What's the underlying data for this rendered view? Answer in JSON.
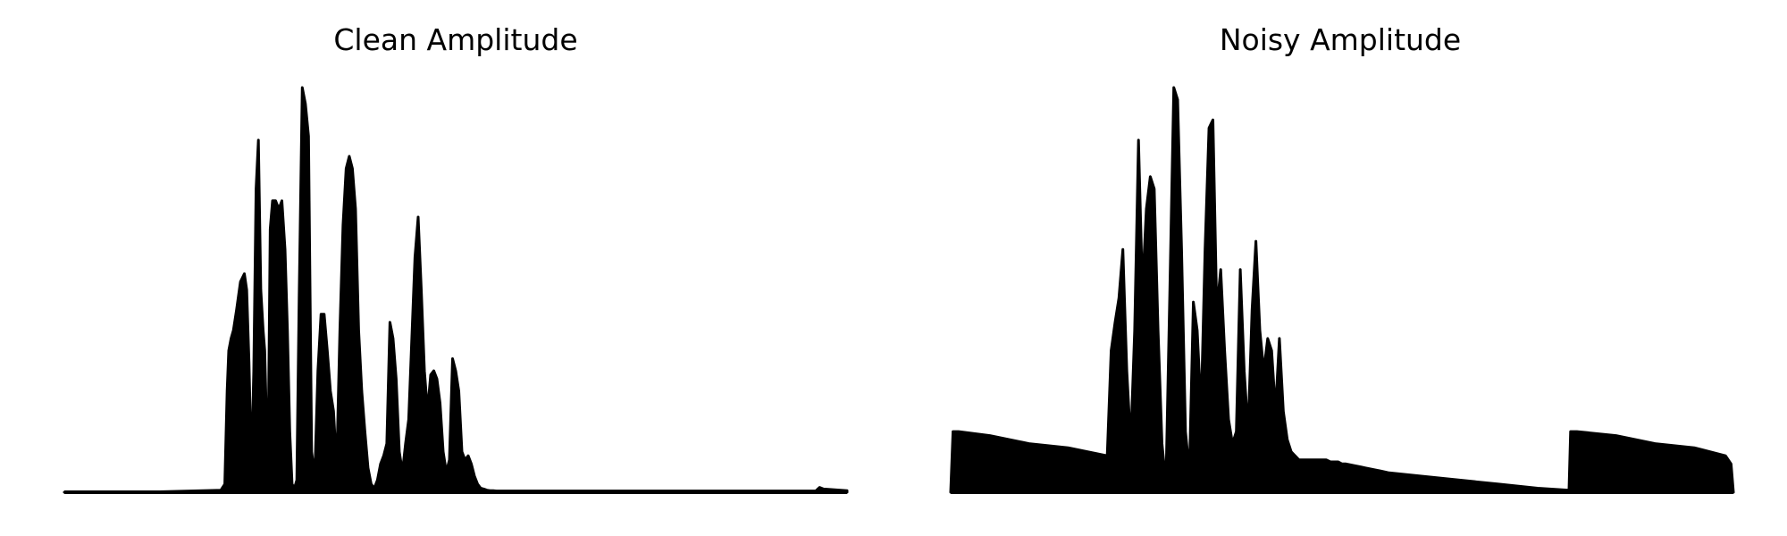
{
  "chart_data": [
    {
      "type": "area",
      "title": "Clean Amplitude",
      "xlabel": "",
      "ylabel": "",
      "axes_visible": false,
      "grid": false,
      "color": "#000000",
      "xlim": [
        0,
        1
      ],
      "ylim": [
        0,
        1
      ],
      "x": [
        0.0,
        0.1,
        0.2,
        0.205,
        0.206,
        0.208,
        0.21,
        0.213,
        0.216,
        0.22,
        0.225,
        0.23,
        0.233,
        0.236,
        0.239,
        0.242,
        0.245,
        0.248,
        0.251,
        0.254,
        0.256,
        0.258,
        0.26,
        0.263,
        0.266,
        0.27,
        0.274,
        0.278,
        0.282,
        0.285,
        0.288,
        0.291,
        0.294,
        0.297,
        0.3,
        0.304,
        0.308,
        0.312,
        0.316,
        0.32,
        0.324,
        0.328,
        0.332,
        0.336,
        0.34,
        0.344,
        0.348,
        0.352,
        0.356,
        0.36,
        0.364,
        0.368,
        0.372,
        0.376,
        0.38,
        0.384,
        0.388,
        0.392,
        0.396,
        0.4,
        0.404,
        0.408,
        0.412,
        0.416,
        0.42,
        0.424,
        0.428,
        0.432,
        0.436,
        0.44,
        0.444,
        0.448,
        0.452,
        0.456,
        0.46,
        0.464,
        0.468,
        0.472,
        0.476,
        0.48,
        0.484,
        0.488,
        0.492,
        0.496,
        0.5,
        0.504,
        0.508,
        0.512,
        0.516,
        0.52,
        0.524,
        0.528,
        0.532,
        0.536,
        0.54,
        0.544,
        0.548,
        0.552,
        0.556,
        0.56,
        0.564,
        0.568,
        0.572,
        0.576,
        0.58,
        0.584,
        0.588,
        0.592,
        0.596,
        0.6,
        0.604,
        0.608,
        0.612,
        0.616,
        0.62,
        0.624,
        0.628,
        0.632,
        0.636,
        0.64,
        0.645,
        0.65,
        0.655,
        0.66,
        0.7,
        0.8,
        0.9,
        0.96,
        0.965,
        0.97,
        1.0
      ],
      "values": [
        0.0,
        0.0,
        0.005,
        0.02,
        0.1,
        0.25,
        0.35,
        0.38,
        0.4,
        0.45,
        0.52,
        0.54,
        0.5,
        0.32,
        0.05,
        0.3,
        0.75,
        0.87,
        0.5,
        0.4,
        0.35,
        0.2,
        0.03,
        0.65,
        0.72,
        0.72,
        0.7,
        0.72,
        0.6,
        0.4,
        0.15,
        0.02,
        0.01,
        0.03,
        0.48,
        1.0,
        0.96,
        0.88,
        0.1,
        0.04,
        0.3,
        0.44,
        0.44,
        0.35,
        0.25,
        0.2,
        0.06,
        0.4,
        0.66,
        0.8,
        0.83,
        0.8,
        0.7,
        0.4,
        0.25,
        0.15,
        0.06,
        0.02,
        0.01,
        0.03,
        0.07,
        0.09,
        0.12,
        0.42,
        0.38,
        0.28,
        0.1,
        0.05,
        0.12,
        0.18,
        0.38,
        0.58,
        0.68,
        0.5,
        0.3,
        0.2,
        0.29,
        0.3,
        0.28,
        0.22,
        0.1,
        0.05,
        0.08,
        0.33,
        0.3,
        0.25,
        0.1,
        0.08,
        0.09,
        0.07,
        0.04,
        0.02,
        0.01,
        0.008,
        0.005,
        0.004,
        0.004,
        0.003,
        0.003,
        0.003,
        0.003,
        0.003,
        0.003,
        0.003,
        0.003,
        0.003,
        0.003,
        0.003,
        0.003,
        0.003,
        0.003,
        0.003,
        0.003,
        0.003,
        0.003,
        0.003,
        0.003,
        0.003,
        0.003,
        0.003,
        0.003,
        0.003,
        0.003,
        0.003,
        0.003,
        0.003,
        0.003,
        0.003,
        0.012,
        0.008,
        0.004
      ]
    },
    {
      "type": "area",
      "title": "Noisy Amplitude",
      "xlabel": "",
      "ylabel": "",
      "axes_visible": false,
      "grid": false,
      "color": "#000000",
      "xlim": [
        0,
        1
      ],
      "ylim": [
        0,
        1
      ],
      "x": [
        0.0,
        0.003,
        0.006,
        0.01,
        0.05,
        0.1,
        0.15,
        0.2,
        0.205,
        0.21,
        0.215,
        0.22,
        0.225,
        0.23,
        0.235,
        0.24,
        0.245,
        0.25,
        0.255,
        0.26,
        0.265,
        0.27,
        0.275,
        0.28,
        0.285,
        0.29,
        0.295,
        0.3,
        0.305,
        0.31,
        0.315,
        0.32,
        0.325,
        0.33,
        0.335,
        0.34,
        0.345,
        0.35,
        0.355,
        0.36,
        0.365,
        0.37,
        0.375,
        0.38,
        0.385,
        0.39,
        0.395,
        0.4,
        0.405,
        0.41,
        0.415,
        0.42,
        0.425,
        0.43,
        0.435,
        0.44,
        0.445,
        0.45,
        0.455,
        0.46,
        0.465,
        0.47,
        0.475,
        0.48,
        0.485,
        0.49,
        0.495,
        0.5,
        0.505,
        0.51,
        0.515,
        0.52,
        0.525,
        0.53,
        0.535,
        0.54,
        0.545,
        0.55,
        0.555,
        0.56,
        0.6,
        0.65,
        0.7,
        0.75,
        0.79,
        0.792,
        0.8,
        0.85,
        0.9,
        0.95,
        0.99,
        0.997,
        1.0
      ],
      "values": [
        0.0,
        0.15,
        0.15,
        0.15,
        0.14,
        0.12,
        0.11,
        0.09,
        0.35,
        0.42,
        0.48,
        0.6,
        0.3,
        0.12,
        0.4,
        0.87,
        0.5,
        0.7,
        0.78,
        0.75,
        0.4,
        0.12,
        0.02,
        0.5,
        1.0,
        0.97,
        0.6,
        0.15,
        0.05,
        0.47,
        0.4,
        0.2,
        0.6,
        0.9,
        0.92,
        0.45,
        0.55,
        0.35,
        0.18,
        0.12,
        0.15,
        0.55,
        0.3,
        0.15,
        0.45,
        0.62,
        0.4,
        0.3,
        0.38,
        0.35,
        0.2,
        0.38,
        0.2,
        0.13,
        0.1,
        0.09,
        0.08,
        0.08,
        0.08,
        0.08,
        0.08,
        0.08,
        0.08,
        0.08,
        0.075,
        0.075,
        0.075,
        0.07,
        0.07,
        0.068,
        0.066,
        0.064,
        0.062,
        0.06,
        0.058,
        0.056,
        0.054,
        0.052,
        0.05,
        0.048,
        0.04,
        0.03,
        0.02,
        0.01,
        0.005,
        0.15,
        0.15,
        0.14,
        0.12,
        0.11,
        0.09,
        0.07,
        0.0
      ]
    }
  ]
}
